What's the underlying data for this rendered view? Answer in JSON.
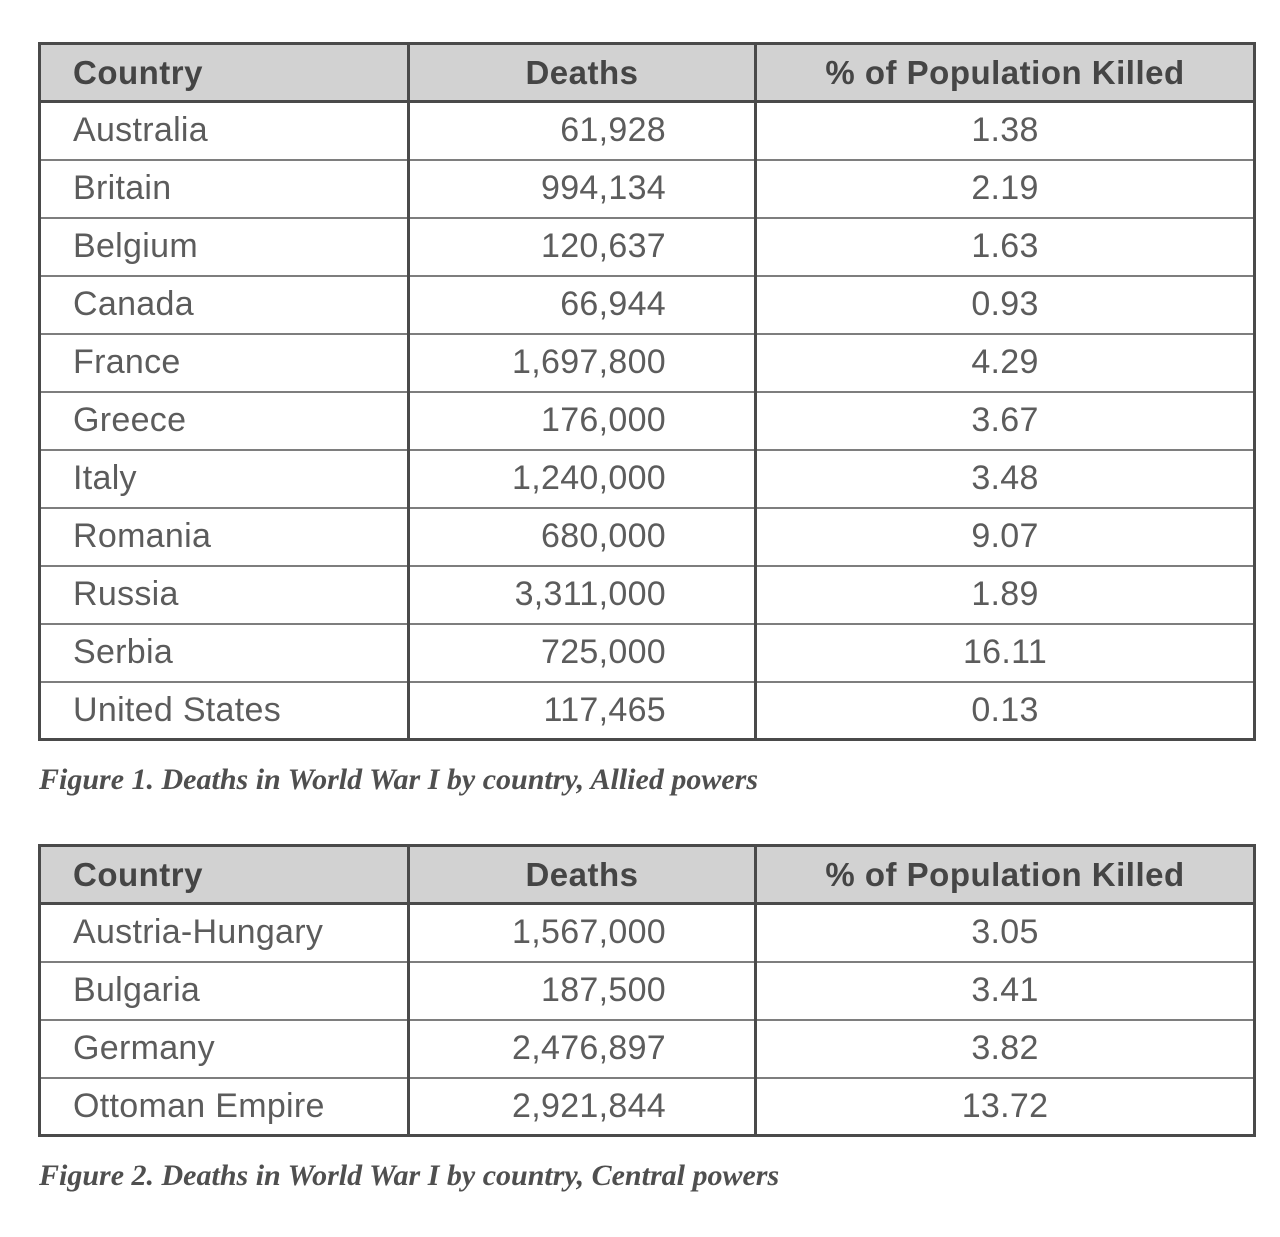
{
  "colors": {
    "header_bg": "#d2d2d2",
    "border_dark": "#4a4a4a",
    "border_light": "#7e7e7e",
    "header_text": "#454545",
    "body_text": "#5c5c5c",
    "caption_text": "#4f4f4f"
  },
  "tables": [
    {
      "name": "allied-powers",
      "columns": [
        "Country",
        "Deaths",
        "% of Population Killed"
      ],
      "rows": [
        [
          "Australia",
          "61,928",
          "1.38"
        ],
        [
          "Britain",
          "994,134",
          "2.19"
        ],
        [
          "Belgium",
          "120,637",
          "1.63"
        ],
        [
          "Canada",
          "66,944",
          "0.93"
        ],
        [
          "France",
          "1,697,800",
          "4.29"
        ],
        [
          "Greece",
          "176,000",
          "3.67"
        ],
        [
          "Italy",
          "1,240,000",
          "3.48"
        ],
        [
          "Romania",
          "680,000",
          "9.07"
        ],
        [
          "Russia",
          "3,311,000",
          "1.89"
        ],
        [
          "Serbia",
          "725,000",
          "16.11"
        ],
        [
          "United States",
          "117,465",
          "0.13"
        ]
      ],
      "caption": "Figure 1. Deaths in World War I by country, Allied powers"
    },
    {
      "name": "central-powers",
      "columns": [
        "Country",
        "Deaths",
        "% of Population Killed"
      ],
      "rows": [
        [
          "Austria-Hungary",
          "1,567,000",
          "3.05"
        ],
        [
          "Bulgaria",
          "187,500",
          "3.41"
        ],
        [
          "Germany",
          "2,476,897",
          "3.82"
        ],
        [
          "Ottoman Empire",
          "2,921,844",
          "13.72"
        ]
      ],
      "caption": "Figure 2. Deaths in World War I by country, Central powers"
    }
  ]
}
